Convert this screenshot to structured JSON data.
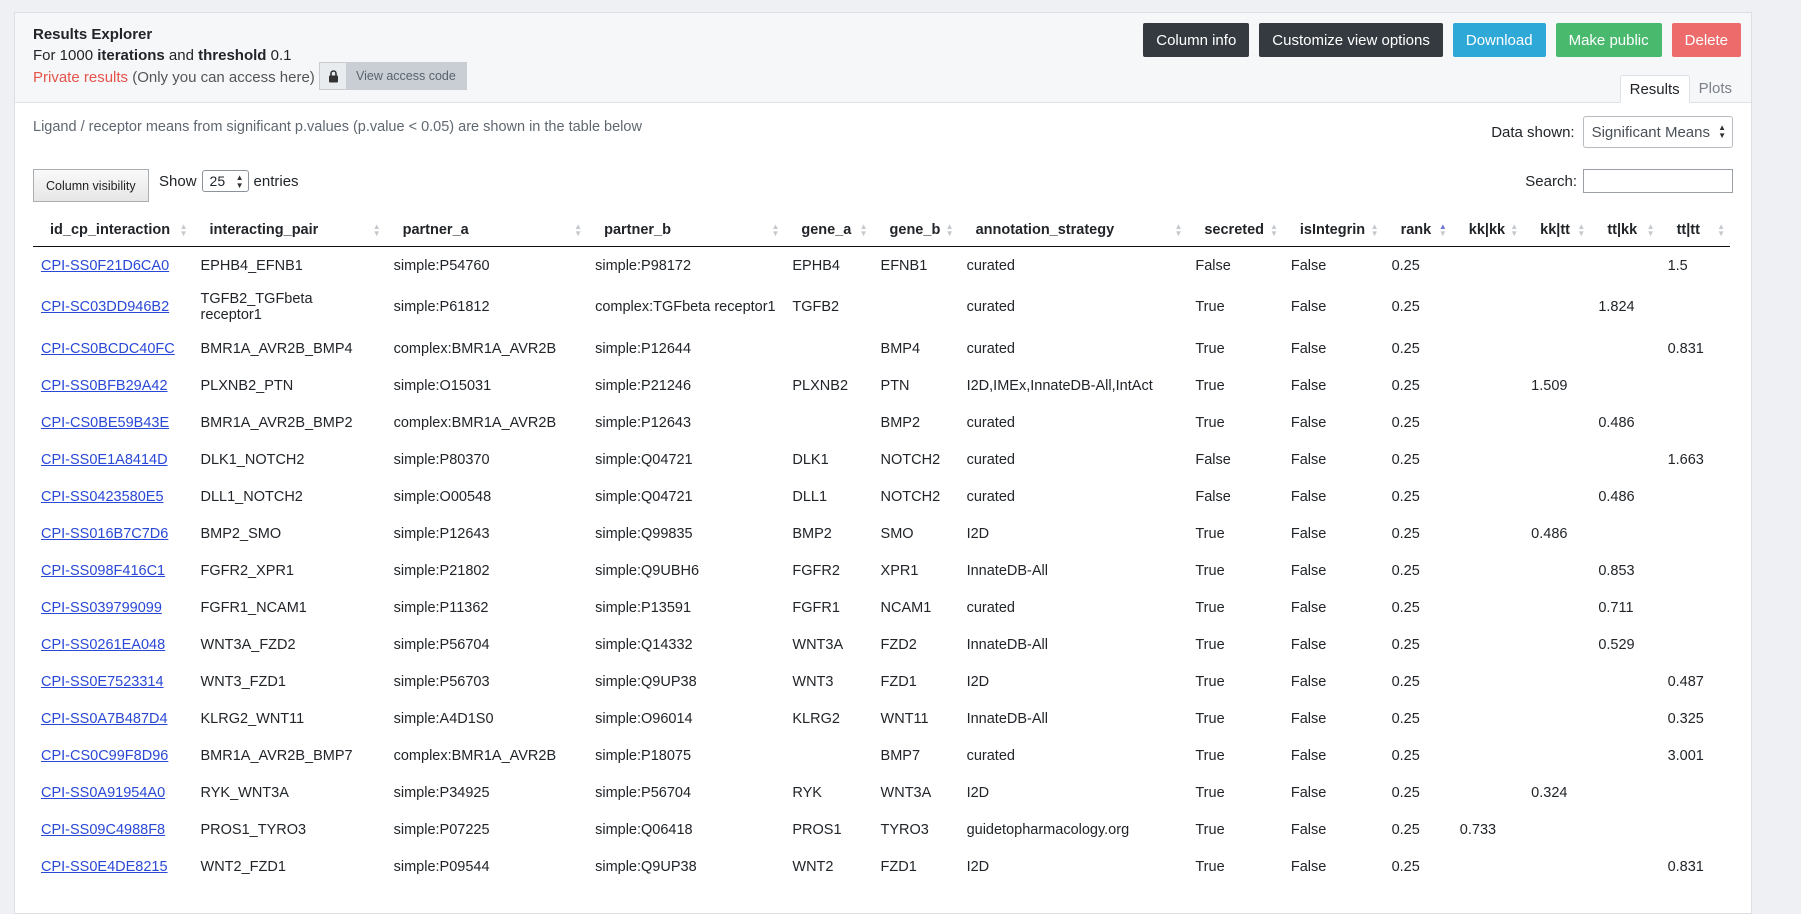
{
  "header": {
    "title": "Results Explorer",
    "line2_prefix": "For 1000",
    "line2_iter": "iterations",
    "line2_mid": "and",
    "line2_thresh": "threshold",
    "line2_value": "0.1",
    "private_label": "Private results",
    "private_note": "(Only you can access here)",
    "view_access_code": "View access code"
  },
  "actions": {
    "column_info": "Column info",
    "customize": "Customize view options",
    "download": "Download",
    "make_public": "Make public",
    "delete": "Delete"
  },
  "tabs": {
    "results": "Results",
    "plots": "Plots"
  },
  "info_text": "Ligand / receptor means from significant p.values (p.value < 0.05) are shown in the table below",
  "data_shown": {
    "label": "Data shown:",
    "value": "Significant Means"
  },
  "controls": {
    "column_visibility": "Column visibility",
    "show": "Show",
    "entries_value": "25",
    "entries": "entries",
    "search_label": "Search:"
  },
  "table": {
    "columns": [
      "id_cp_interaction",
      "interacting_pair",
      "partner_a",
      "partner_b",
      "gene_a",
      "gene_b",
      "annotation_strategy",
      "secreted",
      "isIntegrin",
      "rank",
      "kk|kk",
      "kk|tt",
      "tt|kk",
      "tt|tt"
    ],
    "rows": [
      [
        "CPI-SS0F21D6CA0",
        "EPHB4_EFNB1",
        "simple:P54760",
        "simple:P98172",
        "EPHB4",
        "EFNB1",
        "curated",
        "False",
        "False",
        "0.25",
        "",
        "",
        "",
        "1.5"
      ],
      [
        "CPI-SC03DD946B2",
        "TGFB2_TGFbeta receptor1",
        "simple:P61812",
        "complex:TGFbeta receptor1",
        "TGFB2",
        "",
        "curated",
        "True",
        "False",
        "0.25",
        "",
        "",
        "1.824",
        ""
      ],
      [
        "CPI-CS0BCDC40FC",
        "BMR1A_AVR2B_BMP4",
        "complex:BMR1A_AVR2B",
        "simple:P12644",
        "",
        "BMP4",
        "curated",
        "True",
        "False",
        "0.25",
        "",
        "",
        "",
        "0.831"
      ],
      [
        "CPI-SS0BFB29A42",
        "PLXNB2_PTN",
        "simple:O15031",
        "simple:P21246",
        "PLXNB2",
        "PTN",
        "I2D,IMEx,InnateDB-All,IntAct",
        "True",
        "False",
        "0.25",
        "",
        "1.509",
        "",
        ""
      ],
      [
        "CPI-CS0BE59B43E",
        "BMR1A_AVR2B_BMP2",
        "complex:BMR1A_AVR2B",
        "simple:P12643",
        "",
        "BMP2",
        "curated",
        "True",
        "False",
        "0.25",
        "",
        "",
        "0.486",
        ""
      ],
      [
        "CPI-SS0E1A8414D",
        "DLK1_NOTCH2",
        "simple:P80370",
        "simple:Q04721",
        "DLK1",
        "NOTCH2",
        "curated",
        "False",
        "False",
        "0.25",
        "",
        "",
        "",
        "1.663"
      ],
      [
        "CPI-SS0423580E5",
        "DLL1_NOTCH2",
        "simple:O00548",
        "simple:Q04721",
        "DLL1",
        "NOTCH2",
        "curated",
        "False",
        "False",
        "0.25",
        "",
        "",
        "0.486",
        ""
      ],
      [
        "CPI-SS016B7C7D6",
        "BMP2_SMO",
        "simple:P12643",
        "simple:Q99835",
        "BMP2",
        "SMO",
        "I2D",
        "True",
        "False",
        "0.25",
        "",
        "0.486",
        "",
        ""
      ],
      [
        "CPI-SS098F416C1",
        "FGFR2_XPR1",
        "simple:P21802",
        "simple:Q9UBH6",
        "FGFR2",
        "XPR1",
        "InnateDB-All",
        "True",
        "False",
        "0.25",
        "",
        "",
        "0.853",
        ""
      ],
      [
        "CPI-SS039799099",
        "FGFR1_NCAM1",
        "simple:P11362",
        "simple:P13591",
        "FGFR1",
        "NCAM1",
        "curated",
        "True",
        "False",
        "0.25",
        "",
        "",
        "0.711",
        ""
      ],
      [
        "CPI-SS0261EA048",
        "WNT3A_FZD2",
        "simple:P56704",
        "simple:Q14332",
        "WNT3A",
        "FZD2",
        "InnateDB-All",
        "True",
        "False",
        "0.25",
        "",
        "",
        "0.529",
        ""
      ],
      [
        "CPI-SS0E7523314",
        "WNT3_FZD1",
        "simple:P56703",
        "simple:Q9UP38",
        "WNT3",
        "FZD1",
        "I2D",
        "True",
        "False",
        "0.25",
        "",
        "",
        "",
        "0.487"
      ],
      [
        "CPI-SS0A7B487D4",
        "KLRG2_WNT11",
        "simple:A4D1S0",
        "simple:O96014",
        "KLRG2",
        "WNT11",
        "InnateDB-All",
        "True",
        "False",
        "0.25",
        "",
        "",
        "",
        "0.325"
      ],
      [
        "CPI-CS0C99F8D96",
        "BMR1A_AVR2B_BMP7",
        "complex:BMR1A_AVR2B",
        "simple:P18075",
        "",
        "BMP7",
        "curated",
        "True",
        "False",
        "0.25",
        "",
        "",
        "",
        "3.001"
      ],
      [
        "CPI-SS0A91954A0",
        "RYK_WNT3A",
        "simple:P34925",
        "simple:P56704",
        "RYK",
        "WNT3A",
        "I2D",
        "True",
        "False",
        "0.25",
        "",
        "0.324",
        "",
        ""
      ],
      [
        "CPI-SS09C4988F8",
        "PROS1_TYRO3",
        "simple:P07225",
        "simple:Q06418",
        "PROS1",
        "TYRO3",
        "guidetopharmacology.org",
        "True",
        "False",
        "0.25",
        "0.733",
        "",
        "",
        ""
      ],
      [
        "CPI-SS0E4DE8215",
        "WNT2_FZD1",
        "simple:P09544",
        "simple:Q9UP38",
        "WNT2",
        "FZD1",
        "I2D",
        "True",
        "False",
        "0.25",
        "",
        "",
        "",
        "0.831"
      ]
    ]
  }
}
